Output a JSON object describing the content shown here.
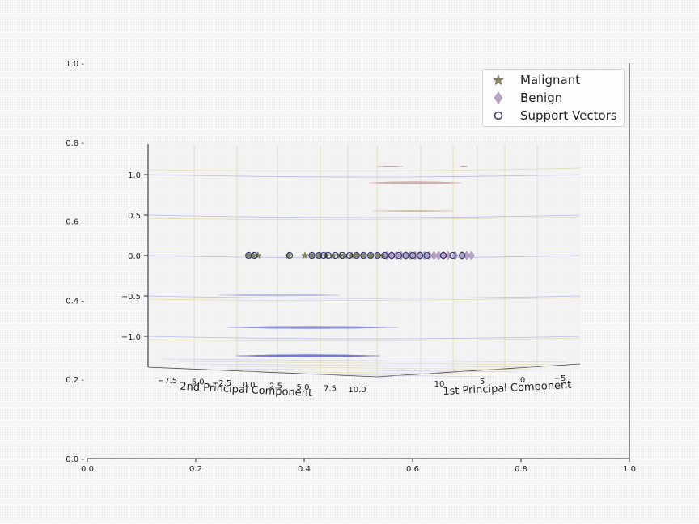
{
  "chart_data": {
    "type": "scatter",
    "outer_axes": {
      "xlim": [
        0.0,
        1.0
      ],
      "ylim": [
        0.0,
        1.0
      ],
      "xticks": [
        "0.0",
        "0.2",
        "0.4",
        "0.6",
        "0.8",
        "1.0"
      ],
      "yticks": [
        "0.0",
        "0.2",
        "0.4",
        "0.6",
        "0.8",
        "1.0"
      ]
    },
    "axes3d": {
      "xlabel": "1st Principal Component",
      "ylabel": "2nd Principal Component",
      "zlabel": "",
      "x_ticks": [
        "−5",
        "0",
        "5",
        "10"
      ],
      "y_ticks": [
        "−7.5",
        "−5.0",
        "−2.5",
        "0.0",
        "2.5",
        "5.0",
        "7.5",
        "10.0"
      ],
      "z_ticks": [
        "−1.0",
        "−0.5",
        "0.0",
        "0.5",
        "1.0"
      ],
      "zlim": [
        -1.4,
        1.4
      ],
      "view": "edge-on (elevation 0)"
    },
    "legend": {
      "position": "top-right",
      "entries": [
        {
          "label": "Malignant",
          "marker": "star",
          "color": "#8c8a5e"
        },
        {
          "label": "Benign",
          "marker": "diamond",
          "color": "#b9a3c4"
        },
        {
          "label": "Support Vectors",
          "marker": "circle-open",
          "color": "#1f2a6b"
        }
      ]
    },
    "series": [
      {
        "name": "Malignant",
        "marker": "star",
        "z": 0.0,
        "x": [
          -11.0,
          -10.6,
          -10.2,
          -7.6,
          -6.2,
          -5.6,
          -5.0,
          -4.4,
          -3.8,
          -3.2,
          -2.8,
          -2.2,
          -1.8,
          -1.2,
          -0.6,
          0.0,
          0.5
        ]
      },
      {
        "name": "Benign",
        "marker": "diamond",
        "z": 0.0,
        "x": [
          0.8,
          1.2,
          1.6,
          2.0,
          2.4,
          2.8,
          3.2,
          3.6,
          4.0,
          4.4,
          4.8,
          5.2,
          5.6,
          6.0,
          6.6,
          7.2,
          7.6,
          8.0
        ]
      },
      {
        "name": "Support Vectors",
        "marker": "circle-open",
        "z": 0.0,
        "x": [
          -11.0,
          -10.5,
          -7.5,
          -5.6,
          -5.0,
          -4.6,
          -4.2,
          -3.6,
          -3.0,
          -2.4,
          -1.8,
          -1.2,
          -0.6,
          0.0,
          0.6,
          1.2,
          1.8,
          2.4,
          3.0,
          3.6,
          4.2,
          5.6,
          6.4,
          7.2
        ]
      }
    ],
    "decision_surface_levels": [
      {
        "z": 1.1,
        "color": "#9a8a90"
      },
      {
        "z": 0.9,
        "color": "#c49a96"
      },
      {
        "z": 0.55,
        "color": "#c9b08a"
      },
      {
        "z": -0.45,
        "color": "#a9a9d8"
      },
      {
        "z": -0.85,
        "color": "#6f6fd6"
      },
      {
        "z": -1.2,
        "color": "#4f4fc8"
      }
    ],
    "colors": {
      "pane": "#f1f1f1",
      "grid_yellow": "#d8cf8a",
      "grid_blue": "#b4b4e6",
      "axis": "#222222"
    }
  }
}
